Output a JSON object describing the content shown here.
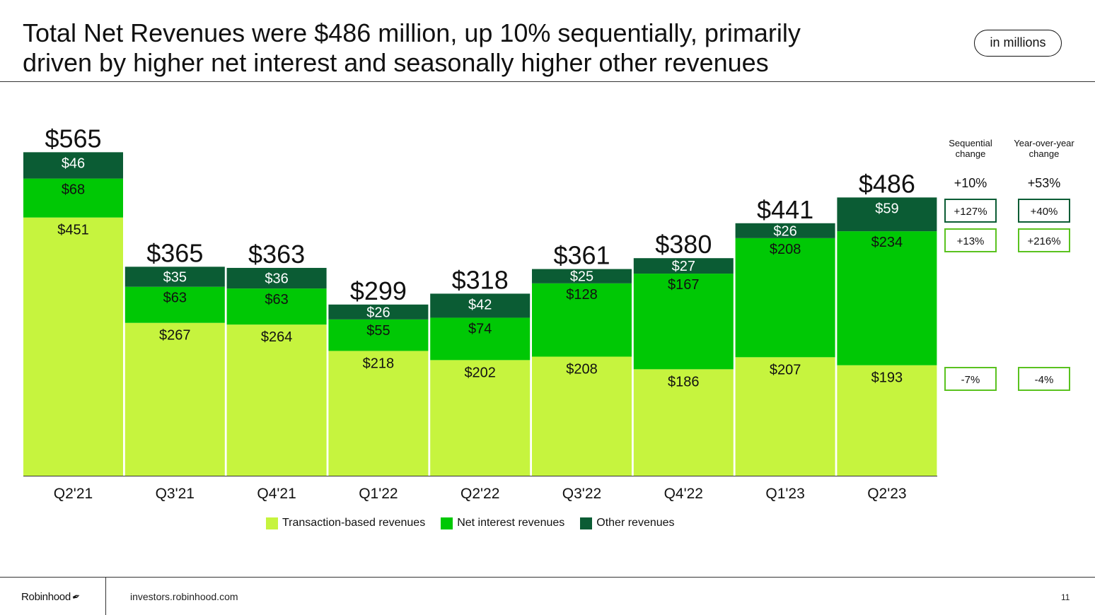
{
  "header": {
    "title_line1": "Total Net Revenues were $486 million, up 10% sequentially, primarily",
    "title_line2": "driven by higher net interest and seasonally higher other revenues",
    "units_badge": "in millions"
  },
  "colors": {
    "transaction": "#c6f43e",
    "net_interest": "#00c805",
    "other": "#0b5c34",
    "box_border": "#5ac21f"
  },
  "chart_data": {
    "type": "bar",
    "stacked": true,
    "categories": [
      "Q2'21",
      "Q3'21",
      "Q4'21",
      "Q1'22",
      "Q2'22",
      "Q3'22",
      "Q4'22",
      "Q1'23",
      "Q2'23"
    ],
    "series": [
      {
        "name": "Transaction-based revenues",
        "values": [
          451,
          267,
          264,
          218,
          202,
          208,
          186,
          207,
          193
        ]
      },
      {
        "name": "Net interest revenues",
        "values": [
          68,
          63,
          63,
          55,
          74,
          128,
          167,
          208,
          234
        ]
      },
      {
        "name": "Other revenues",
        "values": [
          46,
          35,
          36,
          26,
          42,
          25,
          27,
          26,
          59
        ]
      }
    ],
    "totals": [
      565,
      365,
      363,
      299,
      318,
      361,
      380,
      441,
      486
    ],
    "value_prefix": "$",
    "legend_position": "bottom",
    "grid": false,
    "changes": {
      "sequential_header": [
        "Sequential",
        "change"
      ],
      "yoy_header": [
        "Year-over-year",
        "change"
      ],
      "total": {
        "sequential": "+10%",
        "yoy": "+53%"
      },
      "other": {
        "sequential": "+127%",
        "yoy": "+40%"
      },
      "net_interest": {
        "sequential": "+13%",
        "yoy": "+216%"
      },
      "transaction": {
        "sequential": "-7%",
        "yoy": "-4%"
      }
    }
  },
  "footer": {
    "brand": "Robinhood",
    "brand_icon": "feather-icon",
    "site": "investors.robinhood.com",
    "page": "11"
  }
}
